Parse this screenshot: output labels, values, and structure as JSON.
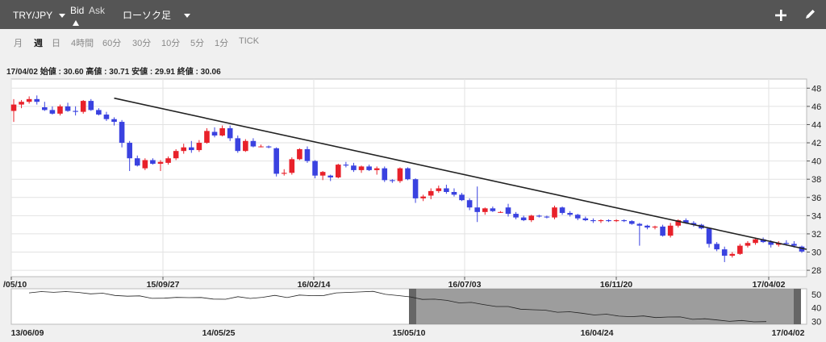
{
  "toolbar": {
    "symbol": "TRY/JPY",
    "bid_label": "Bid",
    "ask_label": "Ask",
    "chart_type": "ローソク足",
    "icons": [
      "dropdown-caret-icon",
      "bid-selected-marker-icon",
      "plus-icon",
      "pencil-icon"
    ]
  },
  "timeframes": [
    "月",
    "週",
    "日",
    "4時間",
    "60分",
    "30分",
    "10分",
    "5分",
    "1分",
    "TICK"
  ],
  "selected_timeframe": "週",
  "ohlc_text": "17/04/02 始値 : 30.60 高値 : 30.71 安値 : 29.91 終値 : 30.06",
  "colors": {
    "up": "#e8212a",
    "down": "#3a42e0",
    "trendline": "#222222",
    "toolbar_bg": "#555555",
    "navigator_window": "#8c8c8c"
  },
  "chart_data": [
    {
      "type": "candlestick",
      "series_name": "TRY/JPY weekly",
      "x_ticks": [
        "/05/10",
        "15/09/27",
        "16/02/14",
        "16/07/03",
        "16/11/20",
        "17/04/02"
      ],
      "y_ticks": [
        28,
        30,
        32,
        34,
        36,
        38,
        40,
        42,
        44,
        46,
        48
      ],
      "ylim": [
        27.3,
        49
      ],
      "grid": true,
      "trendline": {
        "from": {
          "x": "15/05/17",
          "y": 46.9
        },
        "to": {
          "x": "17/04/09",
          "y": 30.3
        }
      },
      "candles": [
        [
          45.5,
          46.8,
          44.3,
          46.2
        ],
        [
          46.2,
          46.7,
          45.8,
          46.5
        ],
        [
          46.5,
          47.1,
          46.3,
          46.8
        ],
        [
          46.8,
          47.2,
          46.2,
          46.5
        ],
        [
          45.9,
          46.5,
          45.5,
          45.6
        ],
        [
          45.6,
          46.0,
          45.1,
          45.2
        ],
        [
          45.2,
          46.2,
          45.0,
          46.0
        ],
        [
          46.0,
          46.4,
          45.4,
          45.5
        ],
        [
          45.5,
          46.0,
          45.0,
          45.4
        ],
        [
          45.4,
          46.7,
          45.2,
          46.6
        ],
        [
          46.6,
          46.8,
          45.5,
          45.6
        ],
        [
          45.6,
          45.8,
          45.0,
          45.1
        ],
        [
          45.1,
          45.4,
          44.4,
          44.6
        ],
        [
          44.6,
          44.8,
          43.9,
          44.3
        ],
        [
          44.3,
          44.5,
          41.5,
          42.0
        ],
        [
          42.0,
          42.2,
          38.9,
          40.3
        ],
        [
          40.3,
          40.6,
          39.4,
          39.5
        ],
        [
          39.2,
          40.3,
          39.0,
          40.1
        ],
        [
          40.1,
          40.3,
          39.6,
          39.7
        ],
        [
          39.7,
          40.1,
          38.9,
          39.9
        ],
        [
          39.8,
          40.5,
          39.6,
          40.3
        ],
        [
          40.3,
          41.3,
          40.1,
          41.1
        ],
        [
          41.1,
          41.9,
          40.8,
          41.5
        ],
        [
          41.5,
          42.2,
          40.9,
          41.2
        ],
        [
          41.2,
          42.3,
          41.0,
          42.0
        ],
        [
          42.0,
          43.6,
          41.9,
          43.3
        ],
        [
          43.2,
          43.7,
          42.6,
          42.8
        ],
        [
          42.8,
          43.9,
          42.7,
          43.6
        ],
        [
          43.6,
          43.9,
          42.2,
          42.5
        ],
        [
          42.5,
          42.8,
          40.9,
          41.1
        ],
        [
          41.1,
          42.4,
          41.0,
          42.2
        ],
        [
          42.2,
          42.5,
          41.5,
          41.6
        ],
        [
          41.6,
          41.8,
          41.5,
          41.6
        ],
        [
          41.6,
          41.7,
          41.4,
          41.5
        ],
        [
          41.4,
          41.5,
          38.3,
          38.6
        ],
        [
          38.6,
          39.1,
          38.4,
          38.7
        ],
        [
          38.7,
          40.4,
          38.5,
          40.2
        ],
        [
          40.2,
          41.4,
          40.1,
          41.3
        ],
        [
          41.3,
          41.6,
          39.8,
          40.0
        ],
        [
          40.0,
          40.1,
          38.1,
          38.4
        ],
        [
          38.4,
          38.9,
          37.9,
          38.8
        ],
        [
          38.4,
          38.5,
          37.8,
          38.2
        ],
        [
          38.2,
          39.7,
          38.1,
          39.6
        ],
        [
          39.6,
          39.9,
          39.3,
          39.5
        ],
        [
          39.5,
          39.8,
          38.8,
          39.0
        ],
        [
          39.0,
          39.5,
          38.7,
          39.4
        ],
        [
          39.4,
          39.6,
          38.9,
          39.0
        ],
        [
          39.0,
          39.4,
          38.5,
          39.2
        ],
        [
          39.2,
          39.4,
          37.7,
          37.9
        ],
        [
          37.9,
          38.0,
          37.6,
          37.8
        ],
        [
          37.8,
          39.3,
          37.6,
          39.2
        ],
        [
          39.2,
          39.3,
          37.9,
          38.0
        ],
        [
          38.0,
          38.1,
          35.4,
          35.9
        ],
        [
          35.9,
          36.3,
          35.6,
          36.1
        ],
        [
          36.2,
          37.0,
          35.8,
          36.7
        ],
        [
          36.7,
          37.3,
          36.5,
          37.0
        ],
        [
          37.0,
          37.4,
          36.4,
          36.6
        ],
        [
          36.6,
          37.0,
          36.1,
          36.3
        ],
        [
          36.3,
          36.5,
          35.6,
          35.7
        ],
        [
          35.7,
          35.9,
          34.6,
          34.9
        ],
        [
          34.9,
          37.2,
          33.3,
          34.4
        ],
        [
          34.4,
          34.9,
          34.1,
          34.8
        ],
        [
          34.8,
          35.0,
          34.4,
          34.5
        ],
        [
          34.4,
          34.5,
          34.3,
          34.4
        ],
        [
          34.9,
          35.3,
          33.9,
          34.2
        ],
        [
          34.2,
          34.4,
          33.6,
          33.8
        ],
        [
          33.8,
          34.0,
          33.4,
          33.5
        ],
        [
          33.5,
          34.1,
          33.3,
          34.0
        ],
        [
          34.0,
          34.1,
          33.8,
          33.9
        ],
        [
          33.9,
          34.0,
          33.7,
          33.8
        ],
        [
          33.8,
          35.1,
          33.6,
          34.9
        ],
        [
          34.9,
          35.0,
          34.1,
          34.3
        ],
        [
          34.3,
          34.5,
          33.9,
          34.1
        ],
        [
          34.1,
          34.2,
          33.5,
          33.7
        ],
        [
          33.7,
          33.9,
          33.4,
          33.5
        ],
        [
          33.5,
          33.7,
          33.2,
          33.4
        ],
        [
          33.4,
          33.6,
          33.2,
          33.5
        ],
        [
          33.5,
          33.6,
          33.3,
          33.4
        ],
        [
          33.4,
          33.6,
          33.3,
          33.5
        ],
        [
          33.5,
          33.6,
          33.3,
          33.4
        ],
        [
          33.4,
          33.5,
          33.0,
          33.1
        ],
        [
          33.1,
          33.2,
          30.7,
          32.9
        ],
        [
          32.9,
          33.0,
          32.5,
          32.7
        ],
        [
          32.7,
          32.9,
          32.5,
          32.8
        ],
        [
          32.8,
          33.0,
          31.7,
          31.8
        ],
        [
          31.8,
          33.2,
          31.6,
          32.9
        ],
        [
          32.9,
          33.6,
          32.7,
          33.5
        ],
        [
          33.5,
          33.7,
          33.1,
          33.2
        ],
        [
          33.2,
          33.4,
          32.8,
          33.0
        ],
        [
          33.0,
          33.1,
          32.5,
          32.6
        ],
        [
          32.6,
          32.7,
          30.5,
          30.9
        ],
        [
          30.9,
          31.1,
          30.1,
          30.3
        ],
        [
          30.3,
          30.6,
          28.9,
          29.6
        ],
        [
          29.6,
          30.0,
          29.4,
          29.8
        ],
        [
          29.8,
          30.9,
          29.7,
          30.7
        ],
        [
          30.7,
          31.2,
          30.5,
          31.0
        ],
        [
          31.0,
          31.6,
          30.8,
          31.4
        ],
        [
          31.4,
          31.6,
          31.0,
          31.1
        ],
        [
          31.1,
          31.3,
          30.5,
          30.8
        ],
        [
          30.8,
          31.2,
          30.6,
          31.0
        ],
        [
          31.0,
          31.3,
          30.7,
          30.9
        ],
        [
          30.9,
          31.2,
          30.5,
          30.7
        ],
        [
          30.6,
          30.71,
          29.91,
          30.06
        ]
      ]
    },
    {
      "type": "line",
      "series_name": "navigator",
      "x_ticks": [
        "13/06/09",
        "14/05/25",
        "15/05/10",
        "16/04/24",
        "17/04/02"
      ],
      "y_ticks": [
        30,
        40,
        50
      ],
      "ylim": [
        28,
        54
      ],
      "selected_range": [
        "15/05/10",
        "17/04/02"
      ],
      "values": [
        51,
        51.5,
        52,
        51.6,
        51.2,
        50.8,
        50.2,
        49.3,
        48.8,
        48.2,
        47.5,
        47.0,
        47.3,
        48.1,
        47.2,
        46.4,
        46.8,
        47.6,
        47.2,
        47.9,
        48.6,
        48.1,
        49.2,
        48.6,
        49.7,
        50.5,
        51.4,
        52.1,
        51.5,
        50.3,
        49.1,
        47.6,
        46.8,
        46.1,
        45.3,
        44.2,
        43.5,
        42.6,
        41.3,
        40.4,
        39.5,
        38.6,
        37.9,
        37.4,
        36.8,
        36.0,
        35.3,
        34.8,
        34.2,
        33.8,
        33.5,
        33.4,
        33.2,
        33.0,
        32.2,
        31.6,
        31.1,
        30.6,
        30.2,
        30.1,
        30.1
      ]
    }
  ]
}
